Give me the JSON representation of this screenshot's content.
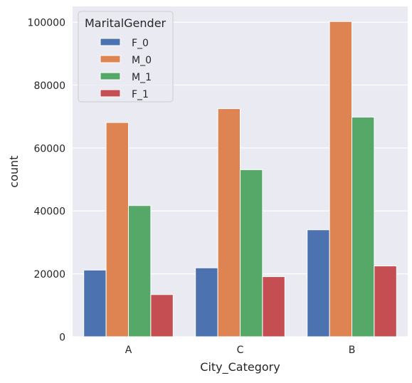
{
  "chart_data": {
    "type": "bar",
    "xlabel": "City_Category",
    "ylabel": "count",
    "categories": [
      "A",
      "C",
      "B"
    ],
    "ylim": [
      0,
      105000
    ],
    "yticks": [
      0,
      20000,
      40000,
      60000,
      80000,
      100000
    ],
    "ytick_labels": [
      "0",
      "20000",
      "40000",
      "60000",
      "80000",
      "100000"
    ],
    "grid": true,
    "background": "#EAEAF2",
    "legend": {
      "title": "MaritalGender",
      "placement": "top-left"
    },
    "series": [
      {
        "name": "F_0",
        "color": "#4C72B0",
        "values": [
          21200,
          21900,
          34000
        ]
      },
      {
        "name": "M_0",
        "color": "#DD8452",
        "values": [
          68100,
          72500,
          100200
        ]
      },
      {
        "name": "M_1",
        "color": "#55A868",
        "values": [
          41700,
          53100,
          69800
        ]
      },
      {
        "name": "F_1",
        "color": "#C44E52",
        "values": [
          13400,
          19100,
          22500
        ]
      }
    ]
  }
}
